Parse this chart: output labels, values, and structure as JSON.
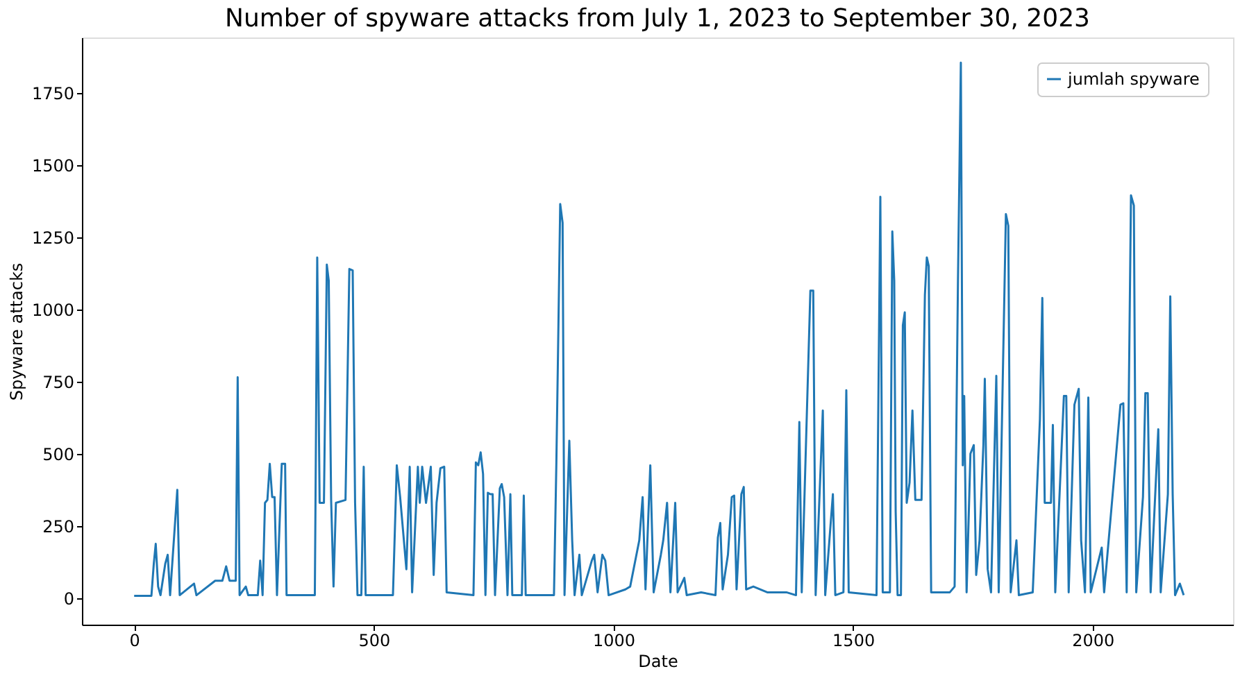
{
  "chart_data": {
    "type": "line",
    "title": "Number of spyware attacks from July 1, 2023 to September 30, 2023",
    "xlabel": "Date",
    "ylabel": "Spyware attacks",
    "xlim": [
      -109,
      2293
    ],
    "ylim": [
      -92,
      1942
    ],
    "xticks": [
      0,
      500,
      1000,
      1500,
      2000
    ],
    "yticks": [
      0,
      250,
      500,
      750,
      1000,
      1250,
      1500,
      1750
    ],
    "grid": false,
    "legend": "top right",
    "marker": "none",
    "line_style": "solid",
    "series": [
      {
        "name": "jumlah spyware",
        "color": "#1f77b4",
        "x": [
          0,
          36,
          41,
          45,
          50,
          55,
          65,
          70,
          75,
          90,
          95,
          125,
          130,
          169,
          184,
          192,
          199,
          212,
          216,
          220,
          233,
          238,
          258,
          263,
          268,
          273,
          278,
          283,
          288,
          293,
          298,
          308,
          315,
          318,
          377,
          382,
          387,
          396,
          402,
          406,
          411,
          416,
          421,
          441,
          449,
          456,
          461,
          466,
          474,
          479,
          483,
          540,
          548,
          555,
          568,
          575,
          580,
          592,
          596,
          601,
          609,
          619,
          625,
          631,
          639,
          647,
          652,
          708,
          713,
          718,
          723,
          728,
          733,
          738,
          743,
          748,
          753,
          763,
          767,
          772,
          779,
          785,
          789,
          809,
          813,
          817,
          876,
          881,
          884,
          889,
          894,
          898,
          908,
          914,
          919,
          929,
          934,
          955,
          960,
          967,
          977,
          983,
          990,
          1025,
          1035,
          1054,
          1061,
          1067,
          1077,
          1084,
          1099,
          1104,
          1112,
          1119,
          1129,
          1134,
          1148,
          1153,
          1183,
          1213,
          1218,
          1223,
          1228,
          1239,
          1247,
          1252,
          1257,
          1267,
          1272,
          1277,
          1292,
          1321,
          1361,
          1381,
          1388,
          1393,
          1411,
          1417,
          1422,
          1437,
          1442,
          1458,
          1463,
          1480,
          1486,
          1491,
          1549,
          1557,
          1562,
          1577,
          1582,
          1586,
          1589,
          1593,
          1600,
          1604,
          1608,
          1612,
          1618,
          1624,
          1630,
          1643,
          1650,
          1654,
          1658,
          1663,
          1702,
          1712,
          1719,
          1725,
          1729,
          1732,
          1737,
          1745,
          1752,
          1757,
          1764,
          1772,
          1775,
          1781,
          1788,
          1799,
          1804,
          1819,
          1824,
          1829,
          1841,
          1846,
          1875,
          1890,
          1895,
          1900,
          1913,
          1917,
          1922,
          1940,
          1945,
          1950,
          1962,
          1971,
          1976,
          1984,
          1991,
          1996,
          2019,
          2024,
          2058,
          2064,
          2071,
          2080,
          2086,
          2091,
          2105,
          2110,
          2115,
          2121,
          2137,
          2142,
          2157,
          2162,
          2167,
          2172,
          2182,
          2190
        ],
        "values": [
          8,
          8,
          120,
          188,
          40,
          10,
          120,
          150,
          10,
          375,
          10,
          50,
          10,
          60,
          60,
          110,
          60,
          60,
          765,
          10,
          40,
          10,
          10,
          130,
          10,
          330,
          340,
          465,
          350,
          350,
          10,
          465,
          465,
          10,
          10,
          1180,
          330,
          330,
          1155,
          1100,
          340,
          40,
          330,
          340,
          1140,
          1135,
          330,
          10,
          10,
          455,
          10,
          10,
          460,
          350,
          100,
          455,
          20,
          455,
          330,
          455,
          330,
          455,
          80,
          330,
          450,
          455,
          20,
          10,
          470,
          460,
          505,
          430,
          10,
          365,
          360,
          360,
          10,
          380,
          395,
          350,
          10,
          360,
          10,
          10,
          355,
          10,
          10,
          470,
          800,
          1365,
          1300,
          10,
          545,
          200,
          10,
          150,
          10,
          130,
          150,
          20,
          150,
          130,
          10,
          30,
          40,
          200,
          350,
          30,
          460,
          20,
          150,
          200,
          330,
          20,
          330,
          20,
          70,
          10,
          20,
          10,
          210,
          260,
          30,
          150,
          350,
          355,
          30,
          360,
          385,
          30,
          40,
          20,
          20,
          10,
          610,
          20,
          1065,
          1065,
          10,
          650,
          10,
          360,
          10,
          20,
          720,
          20,
          10,
          1390,
          20,
          20,
          1270,
          1100,
          300,
          10,
          10,
          945,
          990,
          330,
          400,
          650,
          340,
          340,
          1050,
          1180,
          1150,
          20,
          20,
          40,
          1100,
          1855,
          460,
          700,
          20,
          500,
          530,
          80,
          200,
          530,
          760,
          100,
          20,
          770,
          20,
          1330,
          1290,
          20,
          200,
          10,
          20,
          620,
          1040,
          330,
          330,
          600,
          20,
          700,
          700,
          20,
          670,
          725,
          200,
          20,
          695,
          20,
          175,
          20,
          670,
          675,
          20,
          1395,
          1360,
          20,
          350,
          710,
          710,
          20,
          585,
          20,
          360,
          1045,
          360,
          10,
          50,
          10
        ]
      }
    ]
  }
}
